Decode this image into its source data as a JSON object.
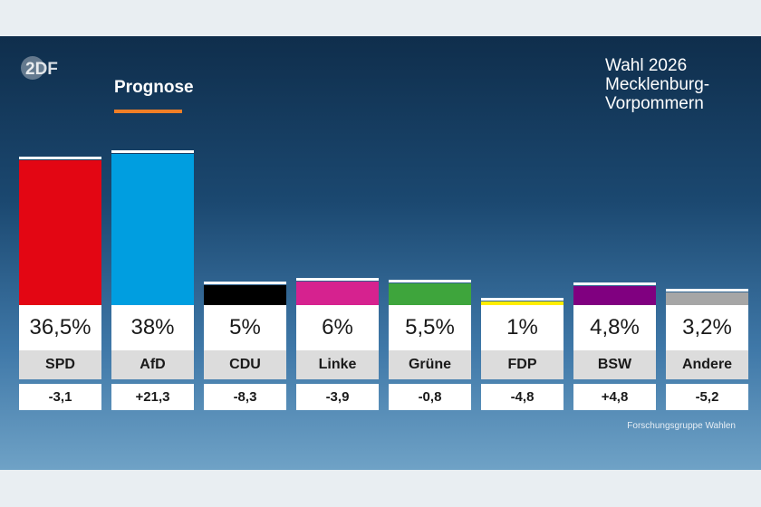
{
  "header": {
    "logo_text": "2DF",
    "tab_label": "Prognose",
    "accent_color": "#f07e26",
    "title_lines": [
      "Wahl 2026",
      "Mecklenburg-",
      "Vorpommern"
    ]
  },
  "footer": {
    "source": "Forschungsgruppe Wahlen"
  },
  "chart_data": {
    "type": "bar",
    "categories": [
      "SPD",
      "AfD",
      "CDU",
      "Linke",
      "Grüne",
      "FDP",
      "BSW",
      "Andere"
    ],
    "values": [
      36.5,
      38,
      5,
      6,
      5.5,
      1,
      4.8,
      3.2
    ],
    "value_labels": [
      "36,5%",
      "38%",
      "5%",
      "6%",
      "5,5%",
      "1%",
      "4,8%",
      "3,2%"
    ],
    "diff_labels": [
      "-3,1",
      "+21,3",
      "-8,3",
      "-3,9",
      "-0,8",
      "-4,8",
      "+4,8",
      "-5,2"
    ],
    "colors": [
      "#e30613",
      "#009ee0",
      "#000000",
      "#d6228f",
      "#3ea53c",
      "#ffed00",
      "#800080",
      "#a6a6a6"
    ],
    "ylim": [
      0,
      38
    ]
  }
}
